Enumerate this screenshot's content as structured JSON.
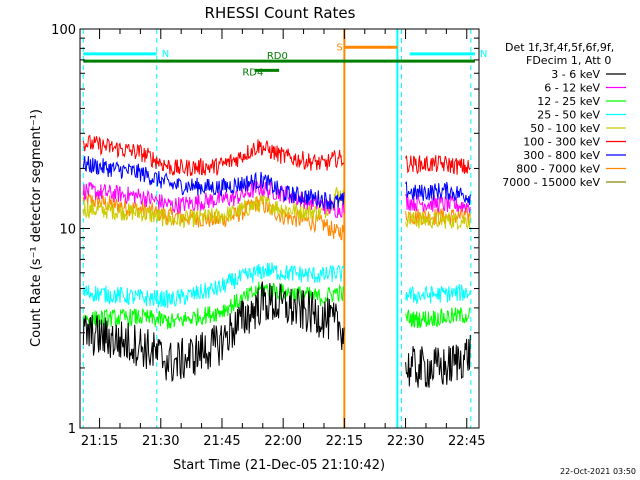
{
  "chart_data": {
    "type": "line",
    "title": "RHESSI Count Rates",
    "xlabel": "Start Time (21-Dec-05 21:10:42)",
    "ylabel": "Count Rate (s⁻¹ detector segment⁻¹)",
    "yscale": "log",
    "ylim": [
      1,
      100
    ],
    "xlim_minutes": [
      21.17,
      22.8
    ],
    "x_ticks": [
      "21:15",
      "21:30",
      "21:45",
      "22:00",
      "22:15",
      "22:30",
      "22:45"
    ],
    "y_ticks": [
      "1",
      "10",
      "100"
    ],
    "legend_header": [
      "Det 1f,3f,4f,5f,6f,9f,",
      "FDecim 1, Att 0"
    ],
    "legend_position": "right",
    "footer_date": "22-Oct-2021 03:50",
    "series": [
      {
        "name": "3 - 6 keV",
        "color": "#000000",
        "x": [
          "21:11",
          "21:25",
          "21:33",
          "21:44",
          "21:48",
          "21:55",
          "22:00",
          "22:10",
          "22:13",
          "22:29",
          "22:32",
          "22:40",
          "22:46"
        ],
        "values": [
          3.0,
          2.6,
          2.1,
          2.6,
          3.2,
          4.3,
          4.1,
          3.6,
          3.3,
          2.0,
          2.0,
          2.0,
          2.4
        ]
      },
      {
        "name": "6 - 12 keV",
        "color": "#ff00ff",
        "x": [
          "21:11",
          "21:25",
          "21:33",
          "21:44",
          "21:48",
          "21:54",
          "22:00",
          "22:10",
          "22:13",
          "22:29",
          "22:32",
          "22:40",
          "22:46"
        ],
        "values": [
          15.5,
          14.5,
          13.0,
          14.0,
          14.2,
          16.0,
          15.0,
          13.0,
          12.5,
          13.8,
          13.5,
          13.2,
          13.0
        ]
      },
      {
        "name": "12 - 25 keV",
        "color": "#00ff00",
        "x": [
          "21:11",
          "21:25",
          "21:33",
          "21:44",
          "21:48",
          "21:55",
          "22:00",
          "22:10",
          "22:13",
          "22:29",
          "22:32",
          "22:40",
          "22:46"
        ],
        "values": [
          3.5,
          3.6,
          3.4,
          3.8,
          4.2,
          5.0,
          4.8,
          4.5,
          4.8,
          3.7,
          3.5,
          3.6,
          3.7
        ]
      },
      {
        "name": "25 - 50 keV",
        "color": "#00ffff",
        "x": [
          "21:11",
          "21:25",
          "21:33",
          "21:44",
          "21:48",
          "21:56",
          "22:00",
          "22:10",
          "22:13",
          "22:29",
          "22:32",
          "22:40",
          "22:46"
        ],
        "values": [
          4.8,
          4.5,
          4.4,
          5.0,
          5.5,
          6.2,
          6.0,
          5.8,
          6.0,
          4.8,
          4.6,
          4.7,
          4.8
        ]
      },
      {
        "name": "50 - 100 keV",
        "color": "#cccc00",
        "x": [
          "21:11",
          "21:25",
          "21:33",
          "21:44",
          "21:48",
          "21:55",
          "22:00",
          "22:10",
          "22:13",
          "22:29",
          "22:32",
          "22:40",
          "22:46"
        ],
        "values": [
          12.5,
          12.0,
          11.0,
          11.5,
          12.0,
          13.5,
          12.5,
          12.0,
          15.0,
          11.5,
          11.0,
          11.0,
          11.0
        ]
      },
      {
        "name": "100 - 300 keV",
        "color": "#ff0000",
        "x": [
          "21:11",
          "21:25",
          "21:33",
          "21:44",
          "21:48",
          "21:54",
          "22:00",
          "22:10",
          "22:13",
          "22:29",
          "22:32",
          "22:40",
          "22:46"
        ],
        "values": [
          27.0,
          24.0,
          20.0,
          20.5,
          22.0,
          26.0,
          23.0,
          21.0,
          22.5,
          21.5,
          21.0,
          21.0,
          20.0
        ]
      },
      {
        "name": "300 - 800 keV",
        "color": "#0000ff",
        "x": [
          "21:11",
          "21:25",
          "21:33",
          "21:44",
          "21:48",
          "21:55",
          "22:00",
          "22:10",
          "22:13",
          "22:29",
          "22:32",
          "22:40",
          "22:46"
        ],
        "values": [
          21.0,
          19.0,
          16.5,
          16.0,
          16.5,
          17.5,
          15.0,
          14.0,
          13.5,
          16.0,
          15.0,
          15.5,
          14.5
        ]
      },
      {
        "name": "800 - 7000 keV",
        "color": "#ff8800",
        "x": [
          "21:11",
          "21:25",
          "21:33",
          "21:44",
          "21:48",
          "21:54",
          "22:00",
          "22:10",
          "22:13",
          "22:29",
          "22:32",
          "22:40",
          "22:46"
        ],
        "values": [
          14.0,
          12.5,
          11.5,
          11.0,
          11.5,
          13.5,
          11.5,
          10.5,
          9.5,
          12.0,
          11.5,
          11.5,
          11.5
        ]
      },
      {
        "name": "7000 - 15000 keV",
        "color": "#888800",
        "x": [],
        "values": []
      }
    ],
    "annotations": [
      {
        "label": "N",
        "color": "#00ffff",
        "y": 75,
        "x_start": "21:11",
        "x_end": "21:29"
      },
      {
        "label": "N",
        "color": "#00ffff",
        "y": 75,
        "x_start": "22:31",
        "x_end": "22:47"
      },
      {
        "label": "RD0",
        "color": "#008000",
        "y": 69,
        "x_start": "21:11",
        "x_end": "22:47"
      },
      {
        "label": "RD4",
        "color": "#008000",
        "y": 62,
        "x_start": "21:53",
        "x_end": "21:59"
      },
      {
        "label": "S",
        "color": "#ff8800",
        "y": 81,
        "x_start": "22:15",
        "x_end": "22:28"
      }
    ],
    "vertical_markers": [
      {
        "x": "21:11",
        "color": "#00ffff",
        "style": "dashed"
      },
      {
        "x": "21:29",
        "color": "#00ffff",
        "style": "dashed"
      },
      {
        "x": "22:15",
        "color": "#ff8800",
        "style": "solid"
      },
      {
        "x": "22:28",
        "color": "#00ffff",
        "style": "solid"
      },
      {
        "x": "22:29",
        "color": "#00ffff",
        "style": "dashed"
      },
      {
        "x": "22:46",
        "color": "#00ffff",
        "style": "dashed"
      }
    ],
    "data_gaps": [
      {
        "x_start": "22:15",
        "x_end": "22:30"
      }
    ]
  }
}
